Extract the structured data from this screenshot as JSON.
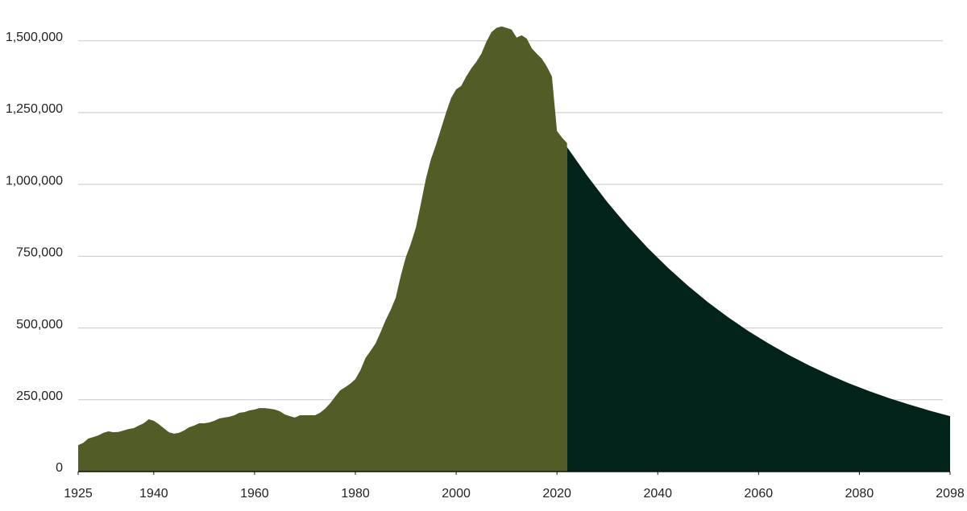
{
  "chart_data": {
    "type": "area",
    "xlim": [
      1925,
      2098
    ],
    "xticks": [
      1925,
      1940,
      1960,
      1980,
      2000,
      2020,
      2040,
      2060,
      2080,
      2098
    ],
    "ylim": [
      0,
      1600000
    ],
    "yticks": [
      0,
      {
        "value": 250000,
        "label": "250,000"
      },
      {
        "value": 500000,
        "label": "500,000"
      },
      {
        "value": 750000,
        "label": "750,000"
      },
      {
        "value": 1000000,
        "label": "1,000,000"
      },
      {
        "value": 1250000,
        "label": "1,250,000"
      },
      {
        "value": 1500000,
        "label": "1,500,000"
      }
    ],
    "grid": true,
    "series": [
      {
        "color": "#525c27",
        "x": [
          1925,
          1926,
          1927,
          1928,
          1929,
          1930,
          1931,
          1932,
          1933,
          1934,
          1935,
          1936,
          1937,
          1938,
          1939,
          1940,
          1941,
          1942,
          1943,
          1944,
          1945,
          1946,
          1947,
          1948,
          1949,
          1950,
          1951,
          1952,
          1953,
          1954,
          1955,
          1956,
          1957,
          1958,
          1959,
          1960,
          1961,
          1962,
          1963,
          1964,
          1965,
          1966,
          1967,
          1968,
          1969,
          1970,
          1971,
          1972,
          1973,
          1974,
          1975,
          1976,
          1977,
          1978,
          1979,
          1980,
          1981,
          1982,
          1983,
          1984,
          1985,
          1986,
          1987,
          1988,
          1989,
          1990,
          1991,
          1992,
          1993,
          1994,
          1995,
          1996,
          1997,
          1998,
          1999,
          2000,
          2001,
          2002,
          2003,
          2004,
          2005,
          2006,
          2007,
          2008,
          2009,
          2010,
          2011,
          2012,
          2013,
          2014,
          2015,
          2016,
          2017,
          2018,
          2019,
          2020,
          2021,
          2022
        ],
        "values": [
          92000,
          100000,
          115000,
          120000,
          126000,
          135000,
          140000,
          137000,
          138000,
          143000,
          148000,
          151000,
          160000,
          168000,
          182000,
          177000,
          165000,
          151000,
          137000,
          132000,
          135000,
          143000,
          154000,
          160000,
          168000,
          168000,
          171000,
          177000,
          185000,
          188000,
          191000,
          196000,
          205000,
          207000,
          213000,
          216000,
          221000,
          221000,
          219000,
          216000,
          210000,
          199000,
          193000,
          188000,
          196000,
          196000,
          196000,
          196000,
          205000,
          219000,
          238000,
          261000,
          283000,
          294000,
          306000,
          322000,
          353000,
          395000,
          420000,
          446000,
          485000,
          527000,
          563000,
          605000,
          681000,
          746000,
          793000,
          849000,
          933000,
          1020000,
          1088000,
          1138000,
          1194000,
          1250000,
          1301000,
          1331000,
          1343000,
          1376000,
          1404000,
          1427000,
          1455000,
          1497000,
          1530000,
          1545000,
          1550000,
          1545000,
          1539000,
          1511000,
          1519000,
          1508000,
          1474000,
          1455000,
          1438000,
          1410000,
          1376000,
          1186000,
          1163000,
          1144000
        ]
      },
      {
        "color": "#02231a",
        "x": [
          2022,
          2026,
          2030,
          2034,
          2038,
          2042,
          2046,
          2050,
          2054,
          2058,
          2062,
          2066,
          2070,
          2074,
          2078,
          2082,
          2086,
          2090,
          2094,
          2098
        ],
        "values": [
          1130000,
          1030000,
          938000,
          855000,
          779000,
          710000,
          647000,
          589000,
          537000,
          489000,
          446000,
          406000,
          370000,
          337000,
          307000,
          280000,
          255000,
          233000,
          212000,
          193000
        ]
      }
    ]
  }
}
